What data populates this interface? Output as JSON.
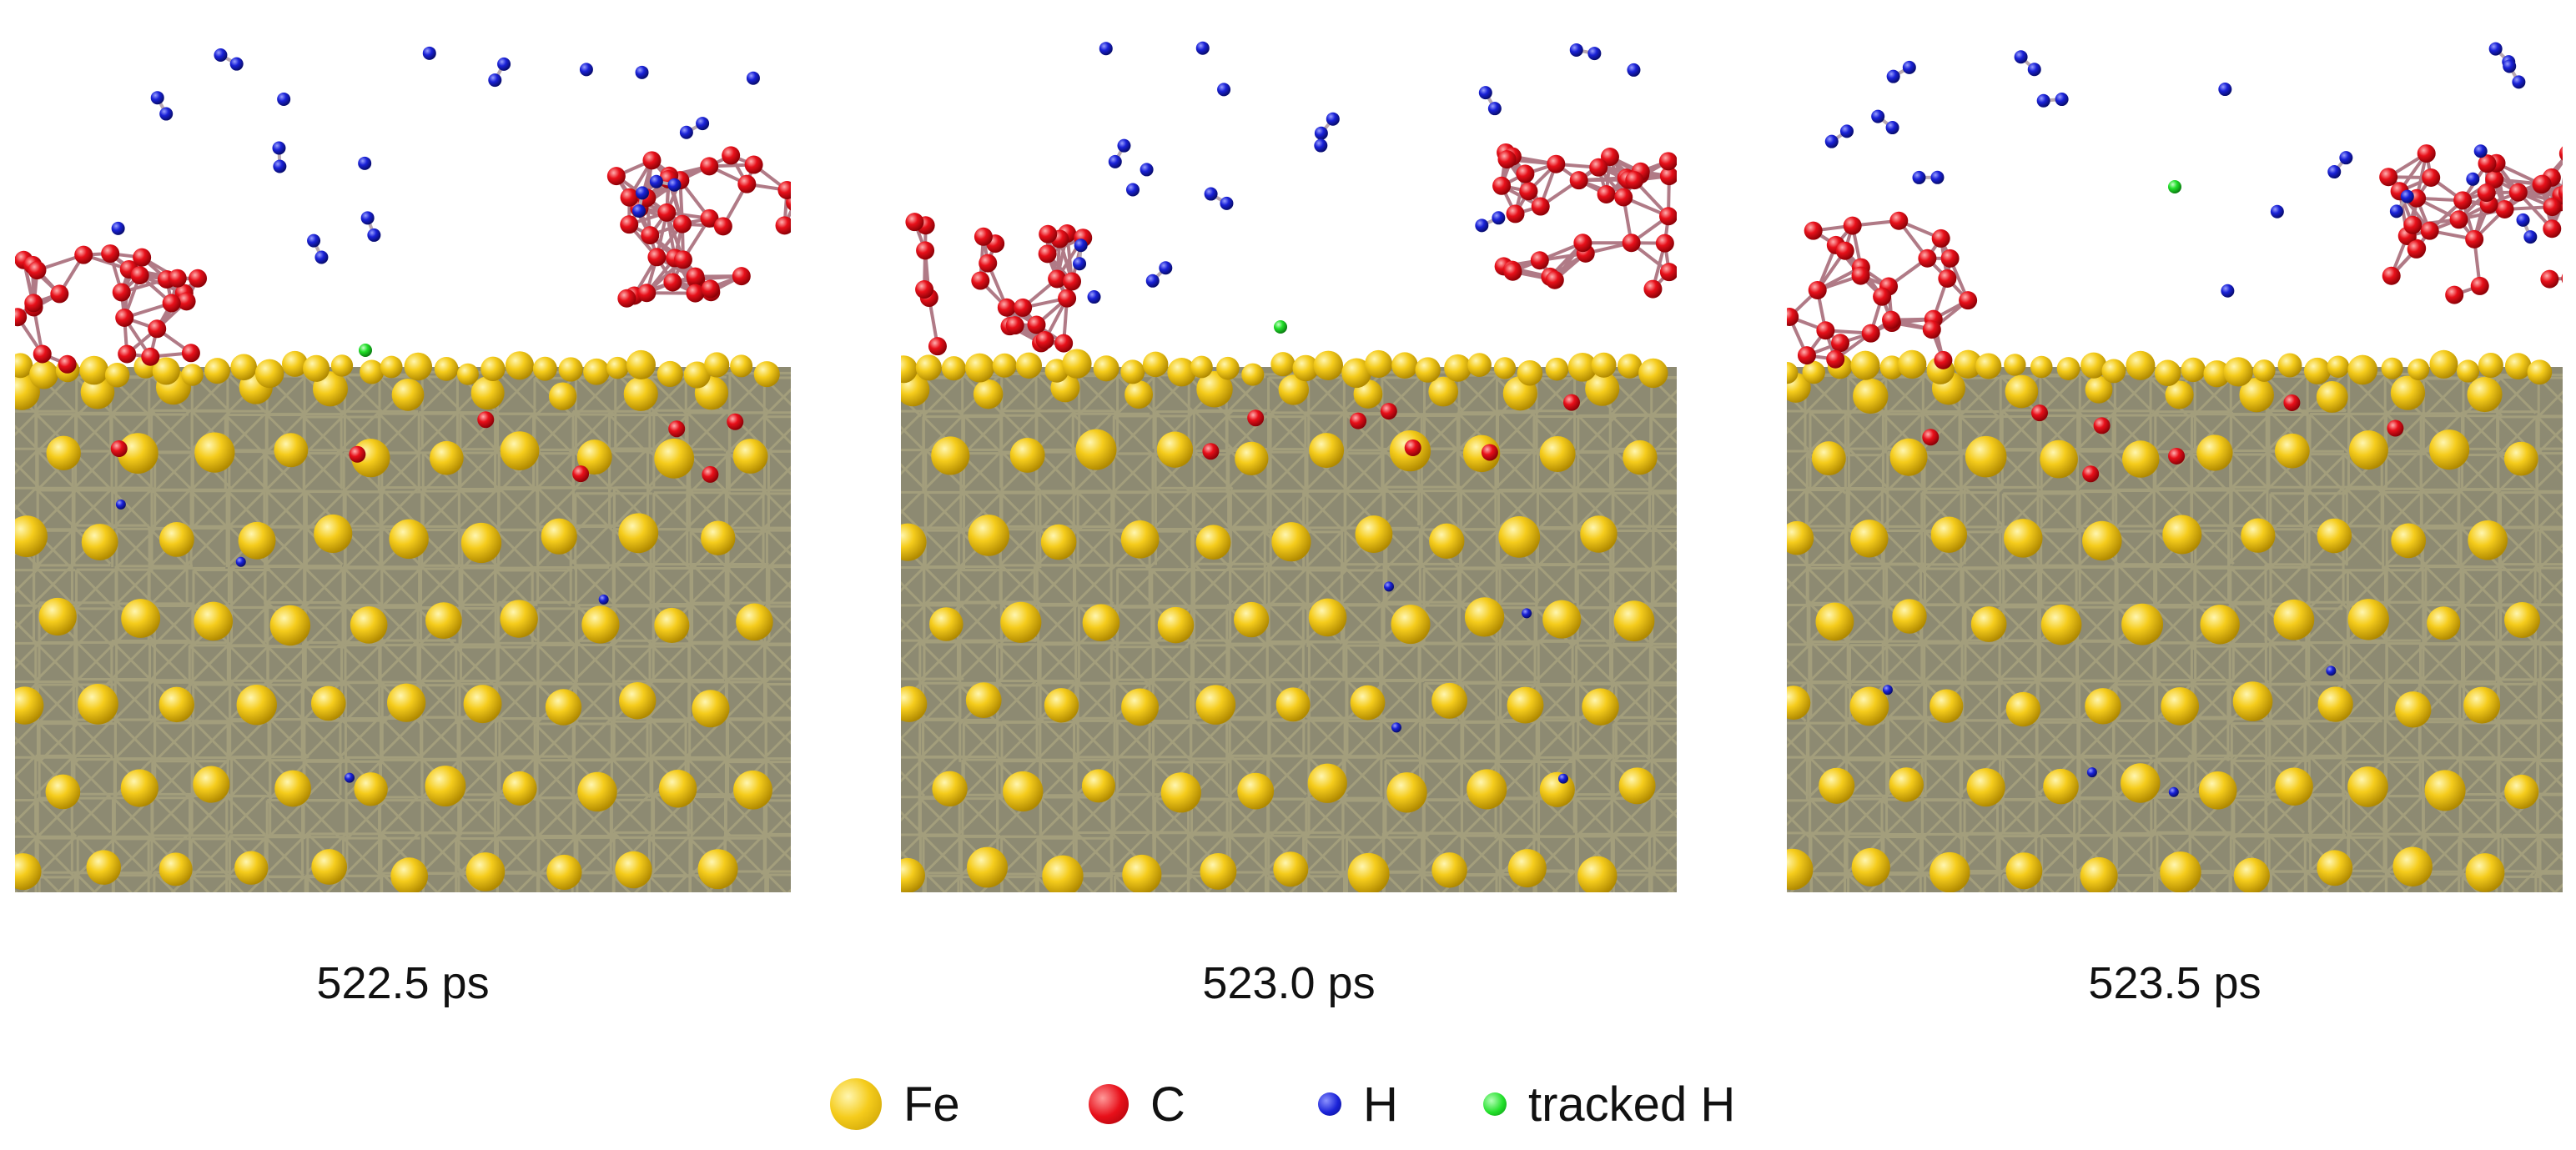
{
  "panels": [
    {
      "label": "522.5 ps"
    },
    {
      "label": "523.0 ps"
    },
    {
      "label": "523.5 ps"
    }
  ],
  "legend": [
    {
      "label": "Fe",
      "color": "#f5cc1c",
      "icon": "fe-atom-icon"
    },
    {
      "label": "C",
      "color": "#e8101a",
      "icon": "c-atom-icon"
    },
    {
      "label": "H",
      "color": "#1a22d8",
      "icon": "h-atom-icon"
    },
    {
      "label": "tracked H",
      "color": "#22e02a",
      "icon": "tracked-h-atom-icon"
    }
  ],
  "colors": {
    "fe": "#f5cc1c",
    "bond": "#a8a27e",
    "c": "#e8101a",
    "h": "#1a22d8",
    "tracked_h": "#22e02a"
  }
}
